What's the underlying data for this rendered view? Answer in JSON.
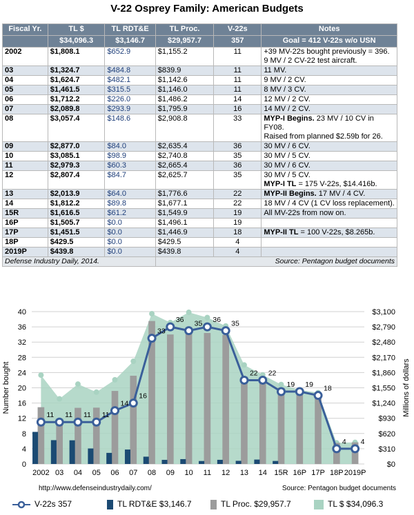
{
  "title": "V-22 Osprey Family: American Budgets",
  "table": {
    "headers_row1": [
      "Fiscal Yr.",
      "TL $",
      "TL RDT&E",
      "TL Proc.",
      "V-22s",
      "Notes"
    ],
    "headers_row2": [
      "",
      "$34,096.3",
      "$3,146.7",
      "$29,957.7",
      "357",
      "Goal = 412 V-22s w/o USN"
    ],
    "rows": [
      {
        "yr": "2002",
        "tl": "$1,808.1",
        "rdte": "$652.9",
        "proc": "$1,155.2",
        "v22": "11",
        "note_b": "",
        "note": "+39 MV-22s bought previously = 396.",
        "note2": "9 MV / 2 CV-22 test aircraft."
      },
      {
        "yr": "03",
        "tl": "$1,324.7",
        "rdte": "$484.8",
        "proc": "$839.9",
        "v22": "11",
        "note_b": "",
        "note": "11 MV.",
        "note2": ""
      },
      {
        "yr": "04",
        "tl": "$1,624.7",
        "rdte": "$482.1",
        "proc": "$1,142.6",
        "v22": "11",
        "note_b": "",
        "note": "9 MV / 2 CV.",
        "note2": ""
      },
      {
        "yr": "05",
        "tl": "$1,461.5",
        "rdte": "$315.5",
        "proc": "$1,146.0",
        "v22": "11",
        "note_b": "",
        "note": "8 MV / 3 CV.",
        "note2": ""
      },
      {
        "yr": "06",
        "tl": "$1,712.2",
        "rdte": "$226.0",
        "proc": "$1,486.2",
        "v22": "14",
        "note_b": "",
        "note": "12 MV / 2 CV.",
        "note2": ""
      },
      {
        "yr": "07",
        "tl": "$2,089.8",
        "rdte": "$293.9",
        "proc": "$1,795.9",
        "v22": "16",
        "note_b": "",
        "note": "14 MV / 2 CV.",
        "note2": ""
      },
      {
        "yr": "08",
        "tl": "$3,057.4",
        "rdte": "$148.6",
        "proc": "$2,908.8",
        "v22": "33",
        "note_b": "MYP-I Begins.",
        "note": " 23 MV / 10 CV in FY08.",
        "note2": "Raised from planned $2.59b for 26."
      },
      {
        "yr": "09",
        "tl": "$2,877.0",
        "rdte": "$84.0",
        "proc": "$2,635.4",
        "v22": "36",
        "note_b": "",
        "note": "30 MV / 6 CV.",
        "note2": ""
      },
      {
        "yr": "10",
        "tl": "$3,085.1",
        "rdte": "$98.9",
        "proc": "$2,740.8",
        "v22": "35",
        "note_b": "",
        "note": "30 MV / 5 CV.",
        "note2": ""
      },
      {
        "yr": "11",
        "tl": "$2,979.3",
        "rdte": "$60.3",
        "proc": "$2,665.4",
        "v22": "36",
        "note_b": "",
        "note": "30 MV / 6 CV.",
        "note2": ""
      },
      {
        "yr": "12",
        "tl": "$2,807.4",
        "rdte": "$84.7",
        "proc": "$2,625.7",
        "v22": "35",
        "note_b": "",
        "note": "30 MV / 5 CV.",
        "note2b": "MYP-I TL",
        "note2": " = 175 V-22s, $14.416b."
      },
      {
        "yr": "13",
        "tl": "$2,013.9",
        "rdte": "$64.0",
        "proc": "$1,776.6",
        "v22": "22",
        "note_b": "MYP-II Begins.",
        "note": " 17 MV / 4 CV.",
        "note2": ""
      },
      {
        "yr": "14",
        "tl": "$1,812.2",
        "rdte": "$89.8",
        "proc": "$1,677.1",
        "v22": "22",
        "note_b": "",
        "note": "18 MV / 4 CV (1 CV loss replacement).",
        "note2": ""
      },
      {
        "yr": "15R",
        "tl": "$1,616.5",
        "rdte": "$61.2",
        "proc": "$1,549.9",
        "v22": "19",
        "note_b": "",
        "note": "All MV-22s from now on.",
        "note2": ""
      },
      {
        "yr": "16P",
        "tl": "$1,505.7",
        "rdte": "$0.0",
        "proc": "$1,496.1",
        "v22": "19",
        "note_b": "",
        "note": "",
        "note2": ""
      },
      {
        "yr": "17P",
        "tl": "$1,451.5",
        "rdte": "$0.0",
        "proc": "$1,446.9",
        "v22": "18",
        "note_b": "MYP-II TL",
        "note": " = 100 V-22s, $8.265b.",
        "note2": ""
      },
      {
        "yr": "18P",
        "tl": "$429.5",
        "rdte": "$0.0",
        "proc": "$429.5",
        "v22": "4",
        "note_b": "",
        "note": "",
        "note2": ""
      },
      {
        "yr": "2019P",
        "tl": "$439.8",
        "rdte": "$0.0",
        "proc": "$439.8",
        "v22": "4",
        "note_b": "",
        "note": "",
        "note2": ""
      }
    ],
    "footer_left": "Defense Industry Daily, 2014.",
    "footer_right": "Source: Pentagon budget documents"
  },
  "chart_data": {
    "type": "bar",
    "categories": [
      "2002",
      "03",
      "04",
      "05",
      "06",
      "07",
      "08",
      "09",
      "10",
      "11",
      "12",
      "13",
      "14",
      "15R",
      "16P",
      "17P",
      "18P",
      "2019P"
    ],
    "series": [
      {
        "name": "V-22s 357",
        "kind": "line",
        "axis": "left",
        "values": [
          11,
          11,
          11,
          11,
          14,
          16,
          33,
          36,
          35,
          36,
          35,
          22,
          22,
          19,
          19,
          18,
          4,
          4
        ]
      },
      {
        "name": "TL RDT&E $3,146.7",
        "kind": "bar",
        "axis": "right",
        "values": [
          652.9,
          484.8,
          482.1,
          315.5,
          226.0,
          293.9,
          148.6,
          84.0,
          98.9,
          60.3,
          84.7,
          64.0,
          89.8,
          61.2,
          0.0,
          0.0,
          0.0,
          0.0
        ]
      },
      {
        "name": "TL Proc. $29,957.7",
        "kind": "bar",
        "axis": "right",
        "values": [
          1155.2,
          839.9,
          1142.6,
          1146.0,
          1486.2,
          1795.9,
          2908.8,
          2635.4,
          2740.8,
          2665.4,
          2625.7,
          1776.6,
          1677.1,
          1549.9,
          1496.1,
          1446.9,
          429.5,
          439.8
        ]
      },
      {
        "name": "TL $ $34,096.3",
        "kind": "area",
        "axis": "right",
        "values": [
          1808.1,
          1324.7,
          1624.7,
          1461.5,
          1712.2,
          2089.8,
          3057.4,
          2877.0,
          3085.1,
          2979.3,
          2807.4,
          2013.9,
          1812.2,
          1616.5,
          1505.7,
          1451.5,
          429.5,
          439.8
        ]
      }
    ],
    "ylabel": "Number bought",
    "ylabel_right": "Millions of dollars",
    "ylim": [
      0,
      40
    ],
    "ylim_right": [
      0,
      3100
    ],
    "yticks": [
      "0",
      "4",
      "8",
      "12",
      "16",
      "20",
      "24",
      "28",
      "32",
      "36",
      "40"
    ],
    "yticks_right": [
      "$0",
      "$310",
      "$620",
      "$930",
      "$1,240",
      "$1,550",
      "$1,860",
      "$2,170",
      "$2,480",
      "$2,790",
      "$3,100"
    ],
    "grid": true,
    "legend_position": "bottom",
    "colors": {
      "line": "#3a5f9a",
      "rdte": "#1b4a73",
      "proc": "#9c9c9c",
      "area": "#a9d3c2",
      "grid": "#d0d0d0"
    }
  },
  "credits": {
    "left": "http://www.defenseindustrydaily.com/",
    "right": "Source: Pentagon budget documents"
  },
  "legend": {
    "line": "V-22s 357",
    "rdte": "TL RDT&E $3,146.7",
    "proc": "TL Proc. $29,957.7",
    "area": "TL $ $34,096.3"
  }
}
